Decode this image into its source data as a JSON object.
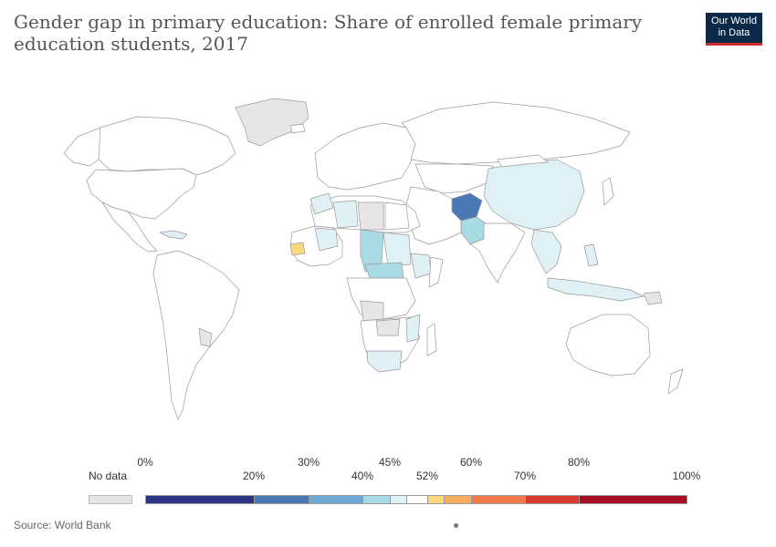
{
  "title": "Gender gap in primary education: Share of enrolled female primary education students, 2017",
  "logo": {
    "line1": "Our World",
    "line2": "in Data"
  },
  "legend": {
    "no_data_label": "No data",
    "bins": [
      {
        "label_top": "0%",
        "label_bottom": "",
        "from": 0,
        "to": 20,
        "color": "#2c3284"
      },
      {
        "label_top": "",
        "label_bottom": "20%",
        "from": 20,
        "to": 30,
        "color": "#4a78b5"
      },
      {
        "label_top": "30%",
        "label_bottom": "",
        "from": 30,
        "to": 40,
        "color": "#6fa8d4"
      },
      {
        "label_top": "",
        "label_bottom": "40%",
        "from": 40,
        "to": 45,
        "color": "#a8dbe3"
      },
      {
        "label_top": "45%",
        "label_bottom": "",
        "from": 45,
        "to": 48,
        "color": "#e0f1f6"
      },
      {
        "label_top": "",
        "label_bottom": "52%",
        "from": 48,
        "to": 52,
        "color": "#ffffff"
      },
      {
        "label_top": "",
        "label_bottom": "",
        "from": 52,
        "to": 55,
        "color": "#fbd97a"
      },
      {
        "label_top": "60%",
        "label_bottom": "",
        "from": 55,
        "to": 60,
        "color": "#f6ad60"
      },
      {
        "label_top": "",
        "label_bottom": "70%",
        "from": 60,
        "to": 70,
        "color": "#f07a4a"
      },
      {
        "label_top": "80%",
        "label_bottom": "",
        "from": 70,
        "to": 80,
        "color": "#d63a2e"
      },
      {
        "label_top": "",
        "label_bottom": "100%",
        "from": 80,
        "to": 100,
        "color": "#a50f26"
      }
    ]
  },
  "source": "Source: World Bank",
  "colors": {
    "nodata": "#e6e6e6",
    "land": "#ffffff",
    "border": "#9a9a9a",
    "light_blue": "#e0f1f6",
    "mid_blue": "#a8dbe3",
    "dark_blue": "#4a78b5",
    "yellow": "#fbd97a"
  }
}
